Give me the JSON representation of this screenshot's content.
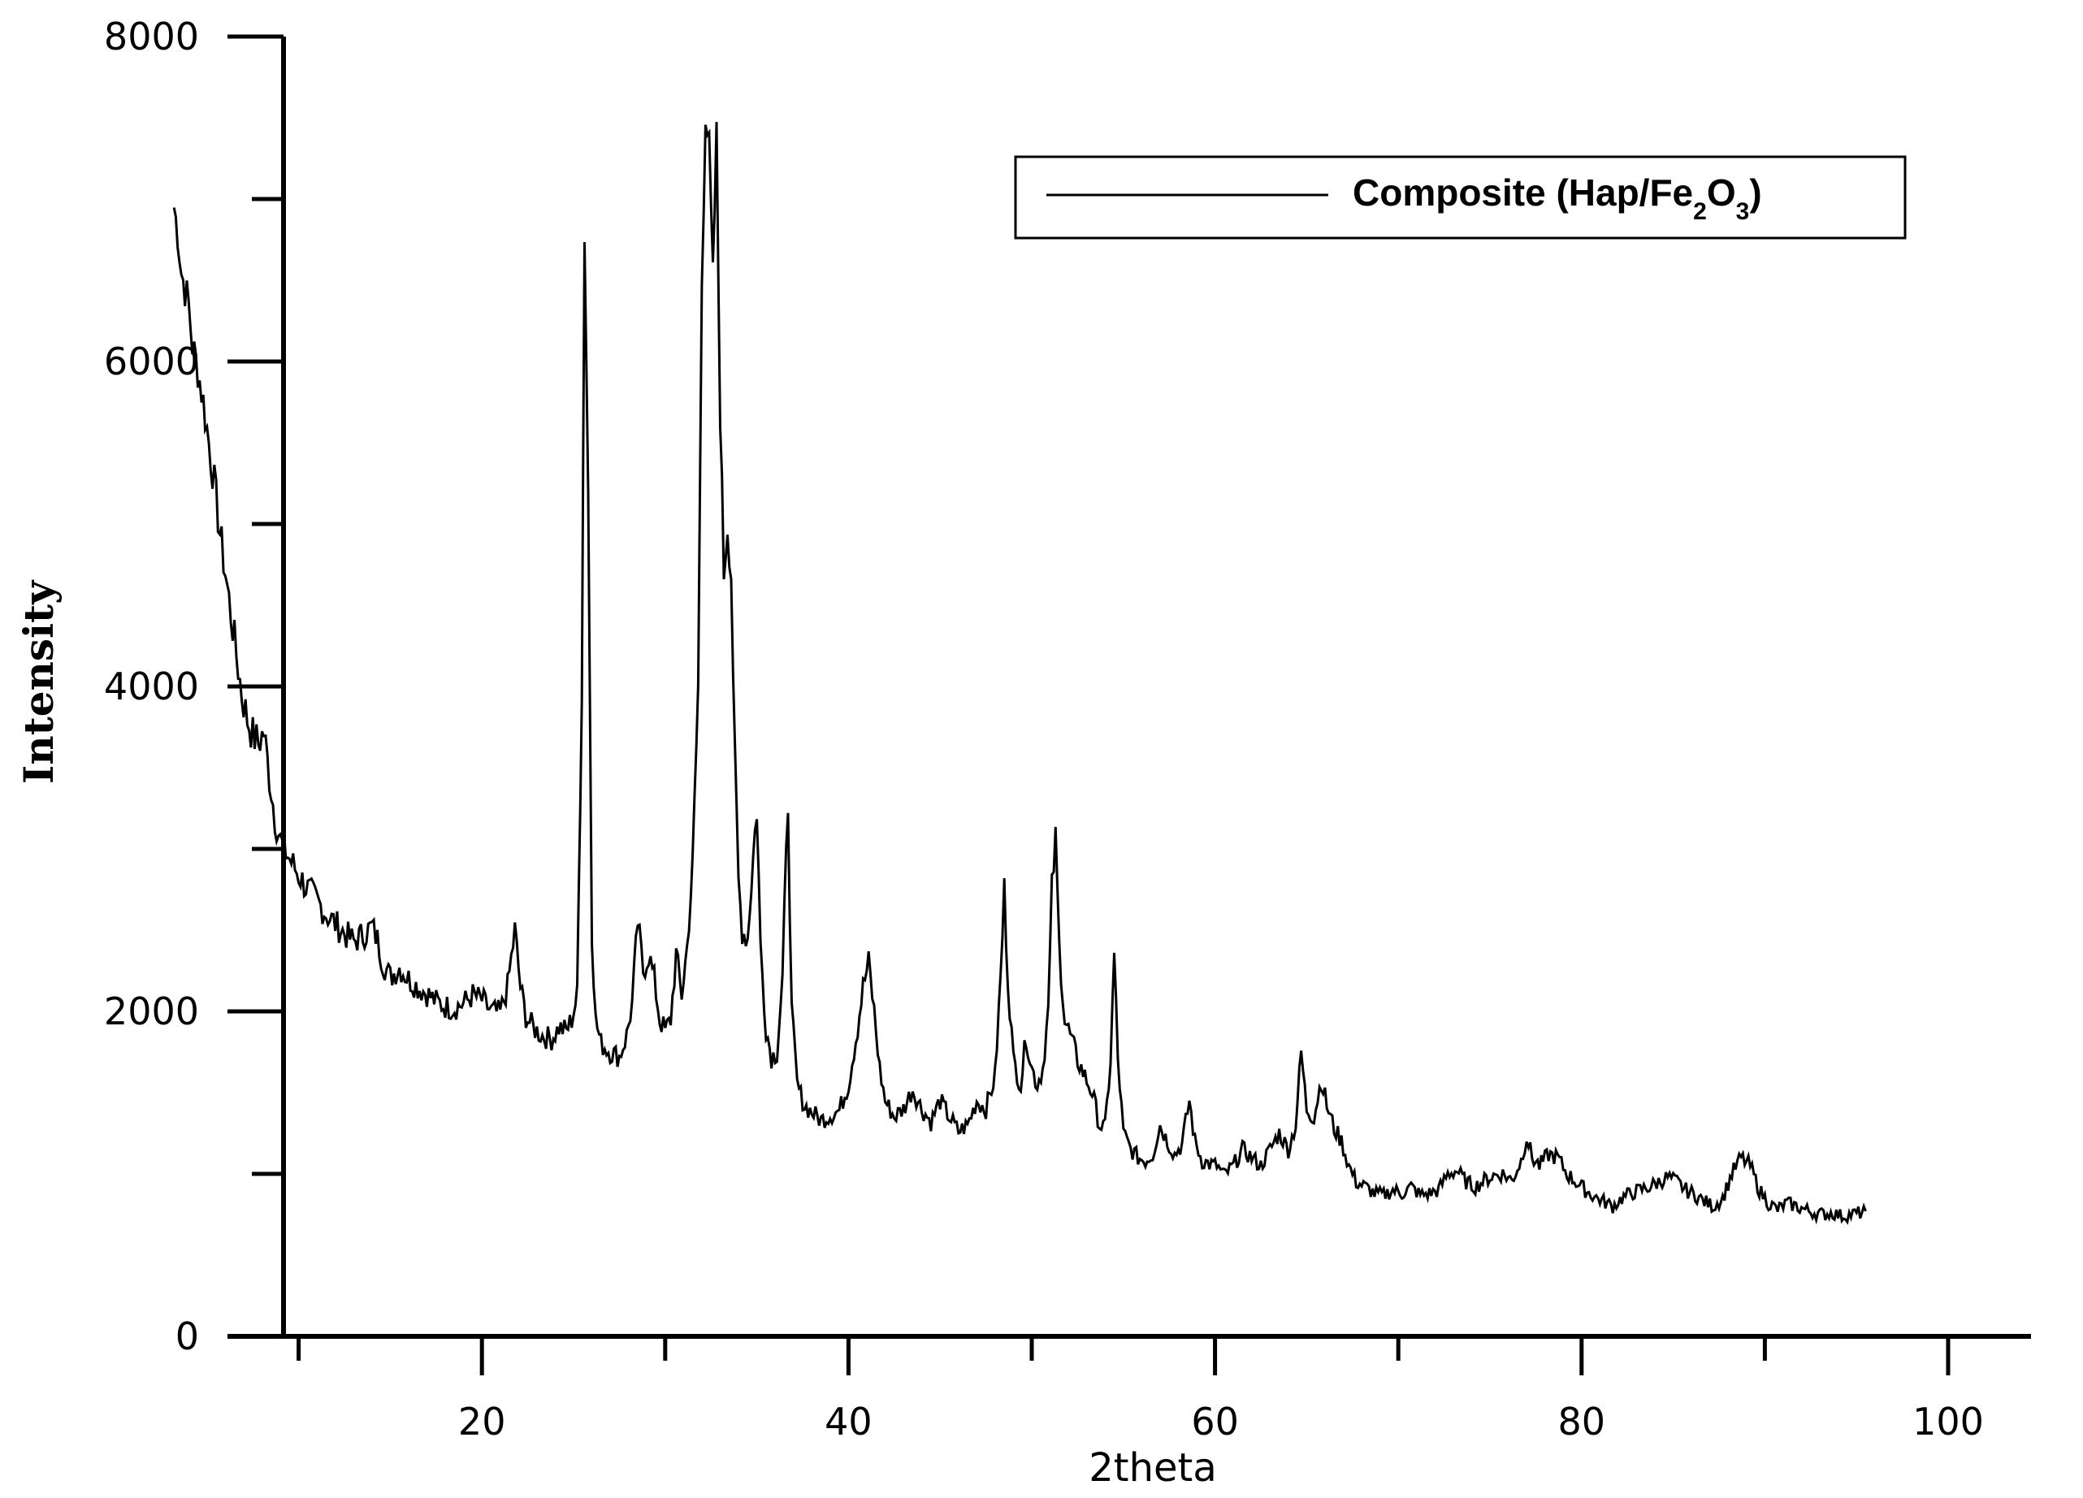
{
  "chart_data": {
    "type": "line",
    "title": "",
    "xlabel": "2theta",
    "ylabel": "Intensity",
    "xlim": [
      0,
      100
    ],
    "ylim": [
      0,
      8000
    ],
    "x_major_ticks": [
      0,
      20,
      40,
      60,
      80,
      100
    ],
    "x_tick_labels": [
      "20",
      "40",
      "60",
      "80",
      "100"
    ],
    "x_minor_ticks": [
      10,
      30,
      50,
      70,
      90
    ],
    "y_major_ticks": [
      0,
      2000,
      4000,
      6000,
      8000
    ],
    "y_tick_labels": [
      "0",
      "2000",
      "4000",
      "6000",
      "8000"
    ],
    "y_minor_ticks": [
      1000,
      3000,
      5000,
      7000
    ],
    "grid": false,
    "legend": {
      "placement": "top-right",
      "label_main": "Composite (Hap/Fe",
      "sub1": "2",
      "mid": "O",
      "sub2": "3",
      "close": ")"
    },
    "series": [
      {
        "name": "Composite (Hap/Fe2O3)",
        "color": "#000000",
        "points": [
          [
            3.2,
            6950
          ],
          [
            3.4,
            6800
          ],
          [
            3.6,
            6550
          ],
          [
            3.8,
            6450
          ],
          [
            4.0,
            6350
          ],
          [
            4.2,
            6100
          ],
          [
            4.5,
            5950
          ],
          [
            4.8,
            5750
          ],
          [
            5.1,
            5500
          ],
          [
            5.4,
            5250
          ],
          [
            5.7,
            4950
          ],
          [
            6.0,
            4700
          ],
          [
            6.3,
            4450
          ],
          [
            6.6,
            4200
          ],
          [
            6.9,
            3950
          ],
          [
            7.2,
            3800
          ],
          [
            7.5,
            3700
          ],
          [
            7.8,
            3650
          ],
          [
            8.1,
            3720
          ],
          [
            8.4,
            3450
          ],
          [
            8.7,
            3200
          ],
          [
            9.0,
            3050
          ],
          [
            9.3,
            2980
          ],
          [
            9.6,
            2920
          ],
          [
            10.0,
            2840
          ],
          [
            10.5,
            2750
          ],
          [
            11.0,
            2680
          ],
          [
            11.5,
            2600
          ],
          [
            12.0,
            2540
          ],
          [
            12.5,
            2480
          ],
          [
            13.0,
            2430
          ],
          [
            13.5,
            2470
          ],
          [
            14.0,
            2520
          ],
          [
            14.3,
            2440
          ],
          [
            14.6,
            2300
          ],
          [
            15.0,
            2210
          ],
          [
            15.5,
            2270
          ],
          [
            16.0,
            2200
          ],
          [
            16.5,
            2150
          ],
          [
            17.0,
            2110
          ],
          [
            17.5,
            2060
          ],
          [
            18.0,
            2030
          ],
          [
            18.5,
            2020
          ],
          [
            19.0,
            2050
          ],
          [
            19.5,
            2100
          ],
          [
            20.0,
            2070
          ],
          [
            20.5,
            2000
          ],
          [
            21.0,
            1990
          ],
          [
            21.4,
            2150
          ],
          [
            21.8,
            2500
          ],
          [
            22.1,
            2150
          ],
          [
            22.4,
            1970
          ],
          [
            22.8,
            1900
          ],
          [
            23.3,
            1850
          ],
          [
            23.8,
            1830
          ],
          [
            24.2,
            1900
          ],
          [
            24.6,
            1880
          ],
          [
            24.9,
            1950
          ],
          [
            25.2,
            2100
          ],
          [
            25.45,
            4000
          ],
          [
            25.6,
            6800
          ],
          [
            25.8,
            5200
          ],
          [
            26.0,
            2500
          ],
          [
            26.2,
            1950
          ],
          [
            26.5,
            1800
          ],
          [
            27.0,
            1750
          ],
          [
            27.5,
            1720
          ],
          [
            27.9,
            1850
          ],
          [
            28.2,
            2050
          ],
          [
            28.5,
            2550
          ],
          [
            28.8,
            2250
          ],
          [
            29.1,
            2350
          ],
          [
            29.4,
            2200
          ],
          [
            29.7,
            1950
          ],
          [
            30.0,
            1880
          ],
          [
            30.3,
            1950
          ],
          [
            30.6,
            2350
          ],
          [
            30.9,
            2100
          ],
          [
            31.2,
            2400
          ],
          [
            31.5,
            2900
          ],
          [
            31.8,
            4000
          ],
          [
            32.0,
            6500
          ],
          [
            32.2,
            7550
          ],
          [
            32.4,
            7300
          ],
          [
            32.6,
            6500
          ],
          [
            32.8,
            7380
          ],
          [
            33.0,
            5700
          ],
          [
            33.2,
            4700
          ],
          [
            33.4,
            5000
          ],
          [
            33.6,
            4700
          ],
          [
            33.8,
            3550
          ],
          [
            34.0,
            2800
          ],
          [
            34.2,
            2500
          ],
          [
            34.5,
            2450
          ],
          [
            34.8,
            2950
          ],
          [
            35.0,
            3250
          ],
          [
            35.2,
            2400
          ],
          [
            35.5,
            1900
          ],
          [
            35.8,
            1720
          ],
          [
            36.1,
            1750
          ],
          [
            36.4,
            2200
          ],
          [
            36.7,
            3300
          ],
          [
            36.9,
            2000
          ],
          [
            37.2,
            1550
          ],
          [
            37.6,
            1420
          ],
          [
            38.0,
            1380
          ],
          [
            38.5,
            1330
          ],
          [
            39.0,
            1360
          ],
          [
            39.5,
            1390
          ],
          [
            40.0,
            1550
          ],
          [
            40.5,
            1900
          ],
          [
            40.8,
            2150
          ],
          [
            41.1,
            2300
          ],
          [
            41.4,
            2000
          ],
          [
            41.7,
            1650
          ],
          [
            42.0,
            1450
          ],
          [
            42.5,
            1350
          ],
          [
            43.0,
            1400
          ],
          [
            43.5,
            1520
          ],
          [
            44.0,
            1400
          ],
          [
            44.5,
            1320
          ],
          [
            45.0,
            1450
          ],
          [
            45.5,
            1350
          ],
          [
            46.0,
            1260
          ],
          [
            46.5,
            1300
          ],
          [
            47.0,
            1450
          ],
          [
            47.5,
            1400
          ],
          [
            48.0,
            1600
          ],
          [
            48.3,
            2200
          ],
          [
            48.5,
            2750
          ],
          [
            48.7,
            2200
          ],
          [
            49.0,
            1700
          ],
          [
            49.4,
            1550
          ],
          [
            49.7,
            1850
          ],
          [
            50.0,
            1650
          ],
          [
            50.3,
            1550
          ],
          [
            50.6,
            1650
          ],
          [
            50.9,
            2000
          ],
          [
            51.1,
            2750
          ],
          [
            51.3,
            3050
          ],
          [
            51.5,
            2400
          ],
          [
            51.8,
            1950
          ],
          [
            52.1,
            1850
          ],
          [
            52.5,
            1700
          ],
          [
            52.9,
            1600
          ],
          [
            53.3,
            1500
          ],
          [
            53.7,
            1300
          ],
          [
            54.0,
            1280
          ],
          [
            54.3,
            1700
          ],
          [
            54.5,
            2350
          ],
          [
            54.7,
            1700
          ],
          [
            55.0,
            1250
          ],
          [
            55.4,
            1150
          ],
          [
            55.8,
            1100
          ],
          [
            56.2,
            1080
          ],
          [
            56.6,
            1120
          ],
          [
            57.0,
            1300
          ],
          [
            57.4,
            1200
          ],
          [
            57.8,
            1120
          ],
          [
            58.2,
            1180
          ],
          [
            58.6,
            1450
          ],
          [
            58.9,
            1200
          ],
          [
            59.3,
            1080
          ],
          [
            59.7,
            1060
          ],
          [
            60.1,
            1050
          ],
          [
            60.5,
            990
          ],
          [
            61.0,
            1050
          ],
          [
            61.5,
            1150
          ],
          [
            62.0,
            1100
          ],
          [
            62.5,
            1050
          ],
          [
            63.0,
            1150
          ],
          [
            63.5,
            1250
          ],
          [
            64.0,
            1150
          ],
          [
            64.4,
            1300
          ],
          [
            64.7,
            1750
          ],
          [
            65.0,
            1400
          ],
          [
            65.4,
            1350
          ],
          [
            65.8,
            1580
          ],
          [
            66.1,
            1420
          ],
          [
            66.5,
            1280
          ],
          [
            66.9,
            1200
          ],
          [
            67.3,
            1050
          ],
          [
            67.7,
            950
          ],
          [
            68.2,
            920
          ],
          [
            68.7,
            880
          ],
          [
            69.2,
            870
          ],
          [
            69.7,
            900
          ],
          [
            70.2,
            880
          ],
          [
            70.7,
            920
          ],
          [
            71.2,
            870
          ],
          [
            71.7,
            880
          ],
          [
            72.2,
            900
          ],
          [
            72.7,
            1000
          ],
          [
            73.2,
            1020
          ],
          [
            73.7,
            950
          ],
          [
            74.2,
            920
          ],
          [
            74.7,
            960
          ],
          [
            75.2,
            990
          ],
          [
            75.7,
            1000
          ],
          [
            76.2,
            960
          ],
          [
            76.7,
            1080
          ],
          [
            77.0,
            1230
          ],
          [
            77.3,
            1100
          ],
          [
            77.7,
            1050
          ],
          [
            78.2,
            1120
          ],
          [
            78.7,
            1100
          ],
          [
            79.2,
            1000
          ],
          [
            79.7,
            950
          ],
          [
            80.2,
            900
          ],
          [
            80.7,
            860
          ],
          [
            81.2,
            830
          ],
          [
            81.7,
            800
          ],
          [
            82.2,
            850
          ],
          [
            82.7,
            880
          ],
          [
            83.2,
            900
          ],
          [
            83.7,
            920
          ],
          [
            84.2,
            950
          ],
          [
            84.7,
            980
          ],
          [
            85.2,
            950
          ],
          [
            85.7,
            900
          ],
          [
            86.2,
            870
          ],
          [
            86.7,
            830
          ],
          [
            87.2,
            800
          ],
          [
            87.7,
            850
          ],
          [
            88.2,
            1000
          ],
          [
            88.7,
            1100
          ],
          [
            89.2,
            1050
          ],
          [
            89.7,
            900
          ],
          [
            90.2,
            820
          ],
          [
            90.7,
            780
          ],
          [
            91.2,
            820
          ],
          [
            91.7,
            800
          ],
          [
            92.2,
            780
          ],
          [
            92.7,
            760
          ],
          [
            93.2,
            750
          ],
          [
            93.7,
            760
          ],
          [
            94.2,
            740
          ],
          [
            94.7,
            750
          ],
          [
            95.2,
            760
          ],
          [
            95.5,
            770
          ]
        ]
      }
    ]
  }
}
